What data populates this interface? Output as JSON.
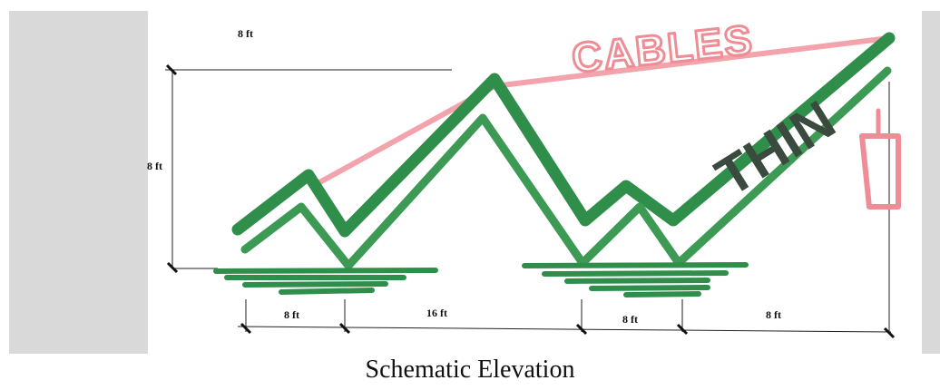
{
  "caption": "Schematic Elevation",
  "dimensions": {
    "top_width": "8 ft",
    "height": "8 ft",
    "bottom": [
      "8 ft",
      "16 ft",
      "8 ft",
      "8 ft"
    ]
  },
  "sketch_labels": {
    "cables": "CABLES",
    "thin": "THIN"
  },
  "colors": {
    "frame_green": "#2f8f4a",
    "frame_green_light": "#4aa35f",
    "cable_pink": "#ee8d95",
    "panel_gray": "#d9d9d9",
    "thin_dark": "#3a4a3e"
  }
}
